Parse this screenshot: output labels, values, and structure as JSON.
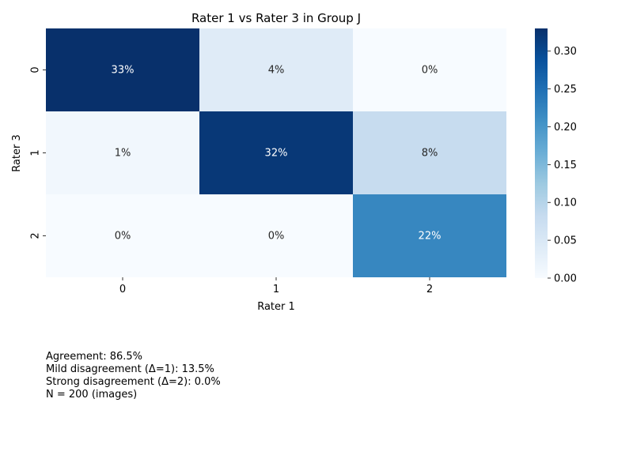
{
  "chart_data": {
    "type": "heatmap",
    "title": "Rater 1 vs Rater 3 in Group J",
    "xlabel": "Rater 1",
    "ylabel": "Rater 3",
    "x_categories": [
      "0",
      "1",
      "2"
    ],
    "y_categories": [
      "0",
      "1",
      "2"
    ],
    "values": [
      [
        0.33,
        0.04,
        0.0
      ],
      [
        0.01,
        0.32,
        0.08
      ],
      [
        0.0,
        0.0,
        0.22
      ]
    ],
    "cell_labels": [
      [
        "33%",
        "4%",
        "0%"
      ],
      [
        "1%",
        "32%",
        "8%"
      ],
      [
        "0%",
        "0%",
        "22%"
      ]
    ],
    "colorbar": {
      "range": [
        0.0,
        0.33
      ],
      "ticks": [
        0.0,
        0.05,
        0.1,
        0.15,
        0.2,
        0.25,
        0.3
      ],
      "tick_labels": [
        "0.00",
        "0.05",
        "0.10",
        "0.15",
        "0.20",
        "0.25",
        "0.30"
      ],
      "colormap": "Blues"
    }
  },
  "stats": {
    "agreement": "Agreement: 86.5%",
    "mild": "Mild disagreement (Δ=1): 13.5%",
    "strong": "Strong disagreement (Δ=2): 0.0%",
    "n": "N = 200 (images)"
  }
}
